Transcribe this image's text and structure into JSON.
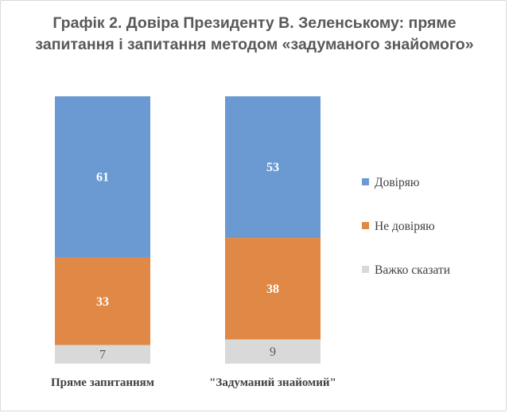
{
  "chart_data": {
    "type": "bar",
    "stacked": true,
    "percent": true,
    "title": "Графік 2. Довіра Президенту В. Зеленському: пряме запитання і запитання методом «задуманого знайомого»",
    "title_lines": [
      "Графік 2. Довіра Президенту В. Зеленському: пряме",
      "запитання і запитання методом «задуманого знайомого»"
    ],
    "categories": [
      "Пряме запитанням",
      "\"Задуманий знайомий\""
    ],
    "series": [
      {
        "name": "Довіряю",
        "values": [
          61,
          53
        ],
        "color": "#6b9ad2",
        "label_color": "#ffffff"
      },
      {
        "name": "Не довіряю",
        "values": [
          33,
          38
        ],
        "color": "#e08845",
        "label_color": "#ffffff"
      },
      {
        "name": "Важко сказати",
        "values": [
          7,
          9
        ],
        "color": "#d9d9d9",
        "label_color": "#595959"
      }
    ],
    "xlabel": "",
    "ylabel": "",
    "grid": false,
    "legend": "right"
  }
}
